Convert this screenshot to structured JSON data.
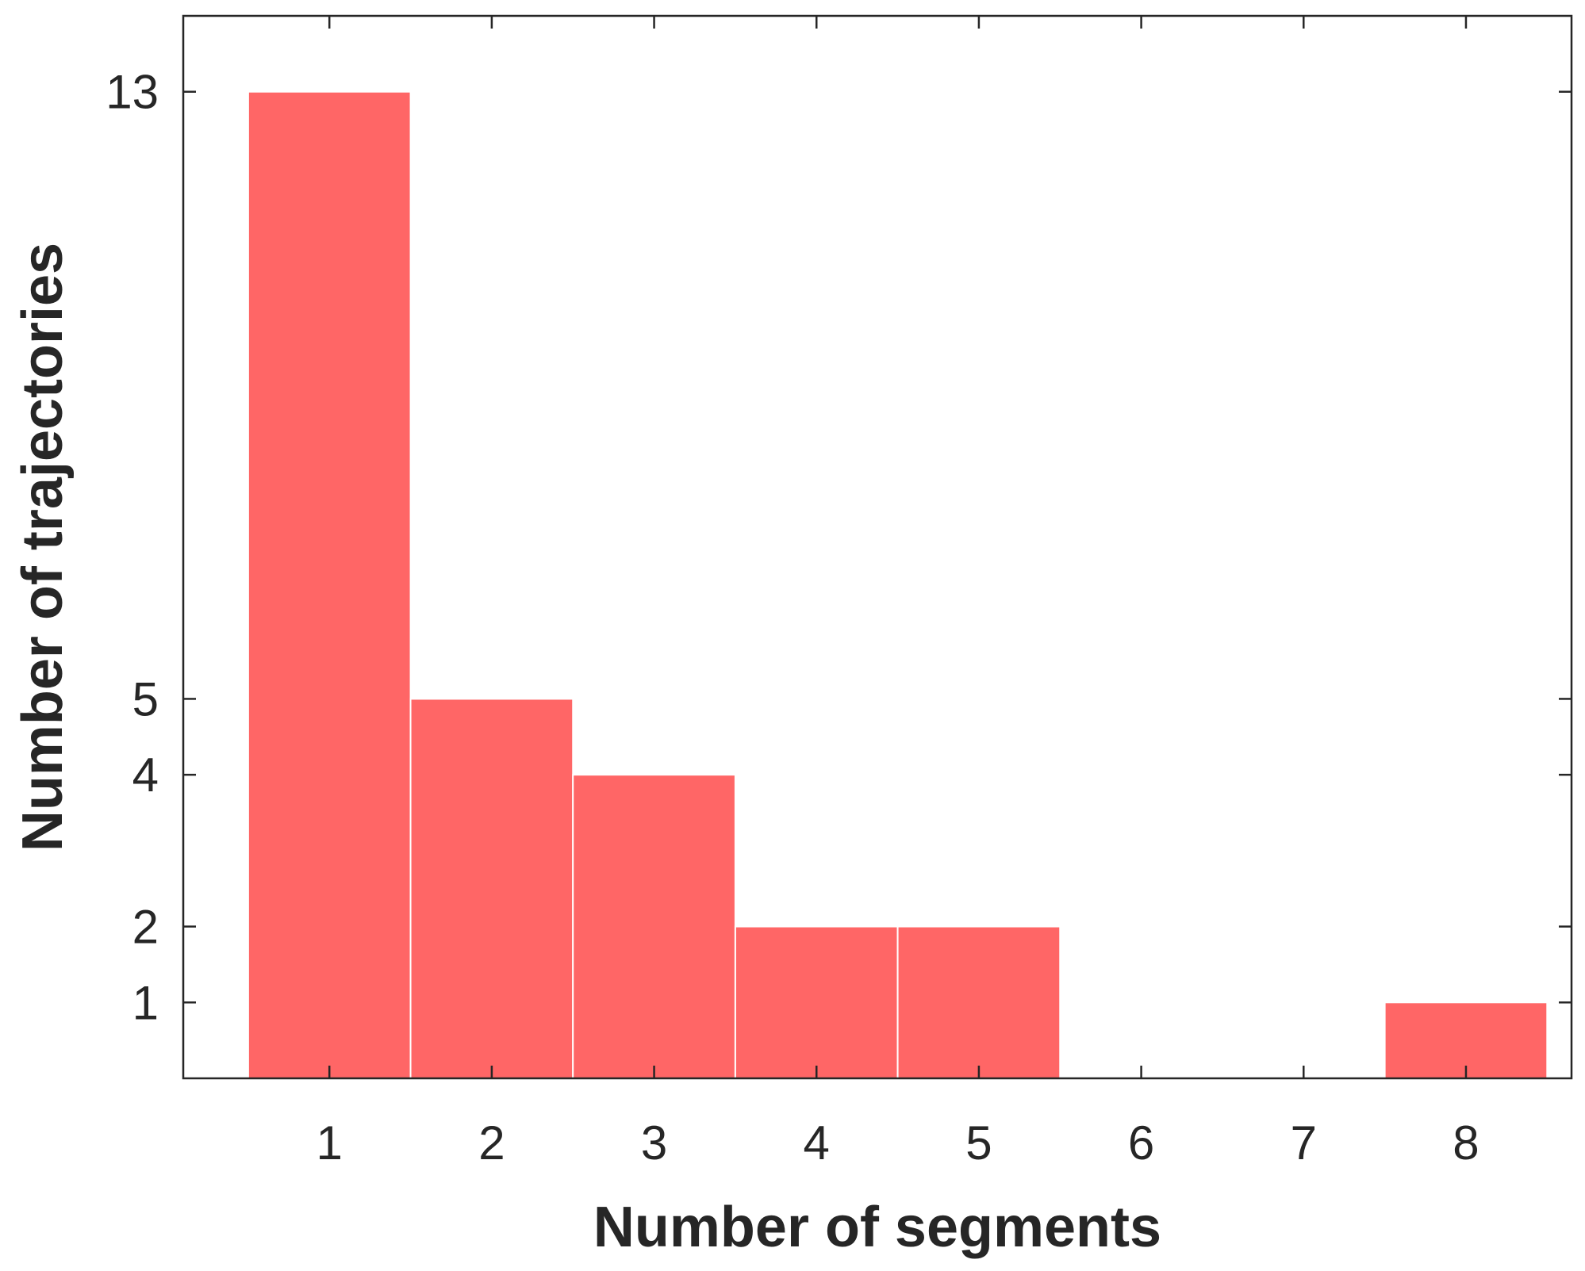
{
  "chart_data": {
    "type": "bar",
    "categories": [
      "1",
      "2",
      "3",
      "4",
      "5",
      "6",
      "7",
      "8"
    ],
    "values": [
      13,
      5,
      4,
      2,
      2,
      0,
      0,
      1
    ],
    "title": "",
    "xlabel": "Number of segments",
    "ylabel": "Number of trajectories",
    "ylim": [
      0,
      14
    ],
    "xlim": [
      0.1,
      8.65
    ],
    "yticks": [
      1,
      2,
      4,
      5,
      13
    ],
    "ytick_labels": [
      "1",
      "2",
      "4",
      "5",
      "13"
    ],
    "xticks": [
      1,
      2,
      3,
      4,
      5,
      6,
      7,
      8
    ],
    "xtick_labels": [
      "1",
      "2",
      "3",
      "4",
      "5",
      "6",
      "7",
      "8"
    ],
    "bar_color": "#FF6666",
    "bar_edge_color": "#FFFFFF",
    "grid": false,
    "box": true
  }
}
